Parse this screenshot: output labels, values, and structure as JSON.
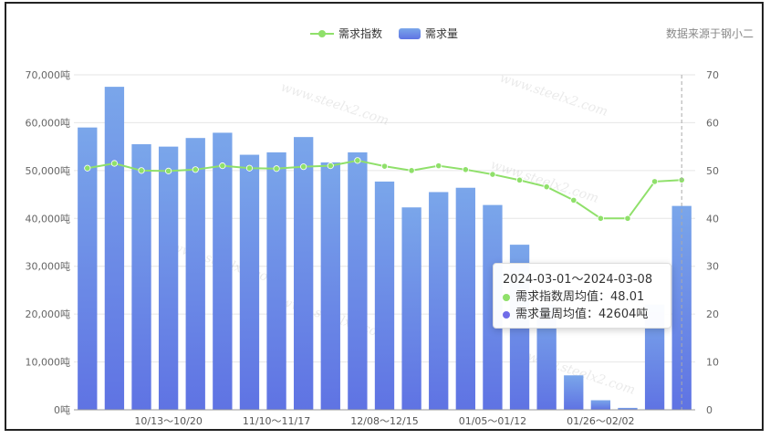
{
  "source_note": "数据来源于钢小二",
  "watermark": "www.steelx2.com",
  "tooltip": {
    "title": "2024-03-01～2024-03-08",
    "row1_label": "需求指数周均值：",
    "row1_value": "48.01",
    "row2_label": "需求量周均值：",
    "row2_value": "42604吨"
  },
  "colors": {
    "bar_top": "#7aa6ea",
    "bar_bottom": "#5f73e3",
    "line": "#8fe06a",
    "tooltip_dot1": "#8fe06a",
    "tooltip_dot2": "#6f6ce8"
  },
  "chart_data": {
    "type": "bar",
    "legend_position": "top-center",
    "grid": true,
    "x_tick_labels": [
      "10/13～10/20",
      "11/10～11/17",
      "12/08～12/15",
      "01/05～01/12",
      "01/26～02/02"
    ],
    "x_tick_indices": [
      3,
      7,
      11,
      15,
      19
    ],
    "y_left": {
      "ticks": [
        "0吨",
        "10,000吨",
        "20,000吨",
        "30,000吨",
        "40,000吨",
        "50,000吨",
        "60,000吨",
        "70,000吨"
      ],
      "range": [
        0,
        70000
      ]
    },
    "y_right": {
      "ticks": [
        "0",
        "10",
        "20",
        "30",
        "40",
        "50",
        "60",
        "70"
      ],
      "range": [
        0,
        70
      ]
    },
    "series": [
      {
        "name": "需求量",
        "type": "bar",
        "axis": "left",
        "values": [
          59000,
          67500,
          55500,
          55000,
          56800,
          57900,
          53300,
          53800,
          57000,
          51700,
          53800,
          47700,
          42300,
          45500,
          46400,
          42800,
          34500,
          22000,
          7200,
          2000,
          400,
          22000,
          42604
        ]
      },
      {
        "name": "需求指数",
        "type": "line",
        "axis": "right",
        "values": [
          50.5,
          51.5,
          50.0,
          49.9,
          50.2,
          51.0,
          50.5,
          50.4,
          50.8,
          51.0,
          52.1,
          50.9,
          50.0,
          51.0,
          50.2,
          49.2,
          48.0,
          46.6,
          43.8,
          40.0,
          40.0,
          47.7,
          48.01
        ]
      }
    ]
  }
}
